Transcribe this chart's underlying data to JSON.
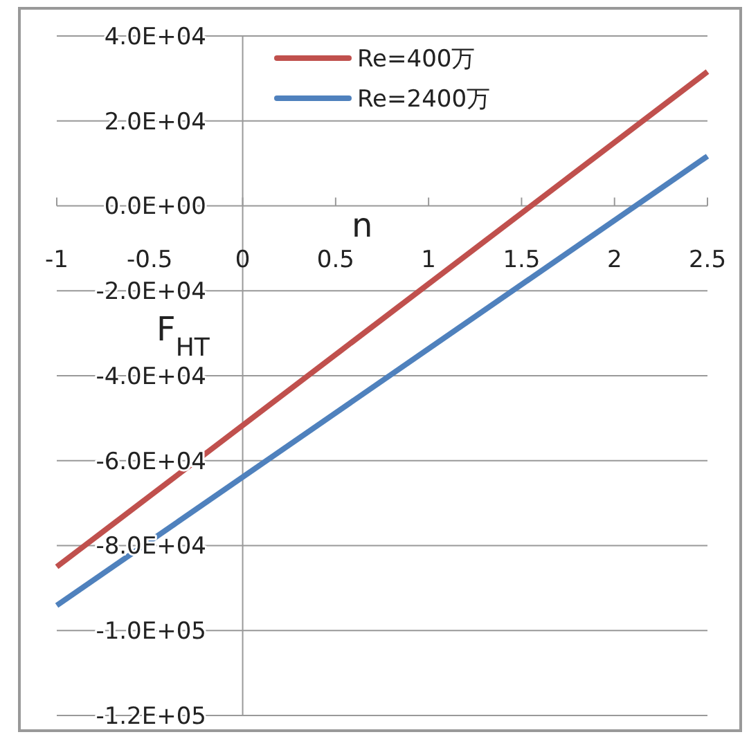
{
  "chart_data": {
    "type": "line",
    "xlabel": "n",
    "ylabel": "F$_{HT}$",
    "x": [
      -1,
      2.5
    ],
    "series": [
      {
        "name": "Re=400万",
        "color": "#c0504d",
        "values": [
          -85000,
          31600
        ]
      },
      {
        "name": "Re=2400万",
        "color": "#4f81bd",
        "values": [
          -94100,
          11700
        ]
      }
    ],
    "xlim": [
      -1,
      2.5
    ],
    "xticks": [
      -1,
      -0.5,
      0,
      0.5,
      1,
      1.5,
      2,
      2.5
    ],
    "ylim": [
      -120000,
      40000
    ],
    "yticks": [
      {
        "value": 40000,
        "label": "4.0E+04"
      },
      {
        "value": 20000,
        "label": "2.0E+04"
      },
      {
        "value": 0,
        "label": "0.0E+00"
      },
      {
        "value": -20000,
        "label": "-2.0E+04"
      },
      {
        "value": -40000,
        "label": "-4.0E+04"
      },
      {
        "value": -60000,
        "label": "-6.0E+04"
      },
      {
        "value": -80000,
        "label": "-8.0E+04"
      },
      {
        "value": -100000,
        "label": "-1.0E+05"
      },
      {
        "value": -120000,
        "label": "-1.2E+05"
      }
    ],
    "grid": "y",
    "legend": "top right",
    "marker": "none",
    "line_style": "solid"
  }
}
